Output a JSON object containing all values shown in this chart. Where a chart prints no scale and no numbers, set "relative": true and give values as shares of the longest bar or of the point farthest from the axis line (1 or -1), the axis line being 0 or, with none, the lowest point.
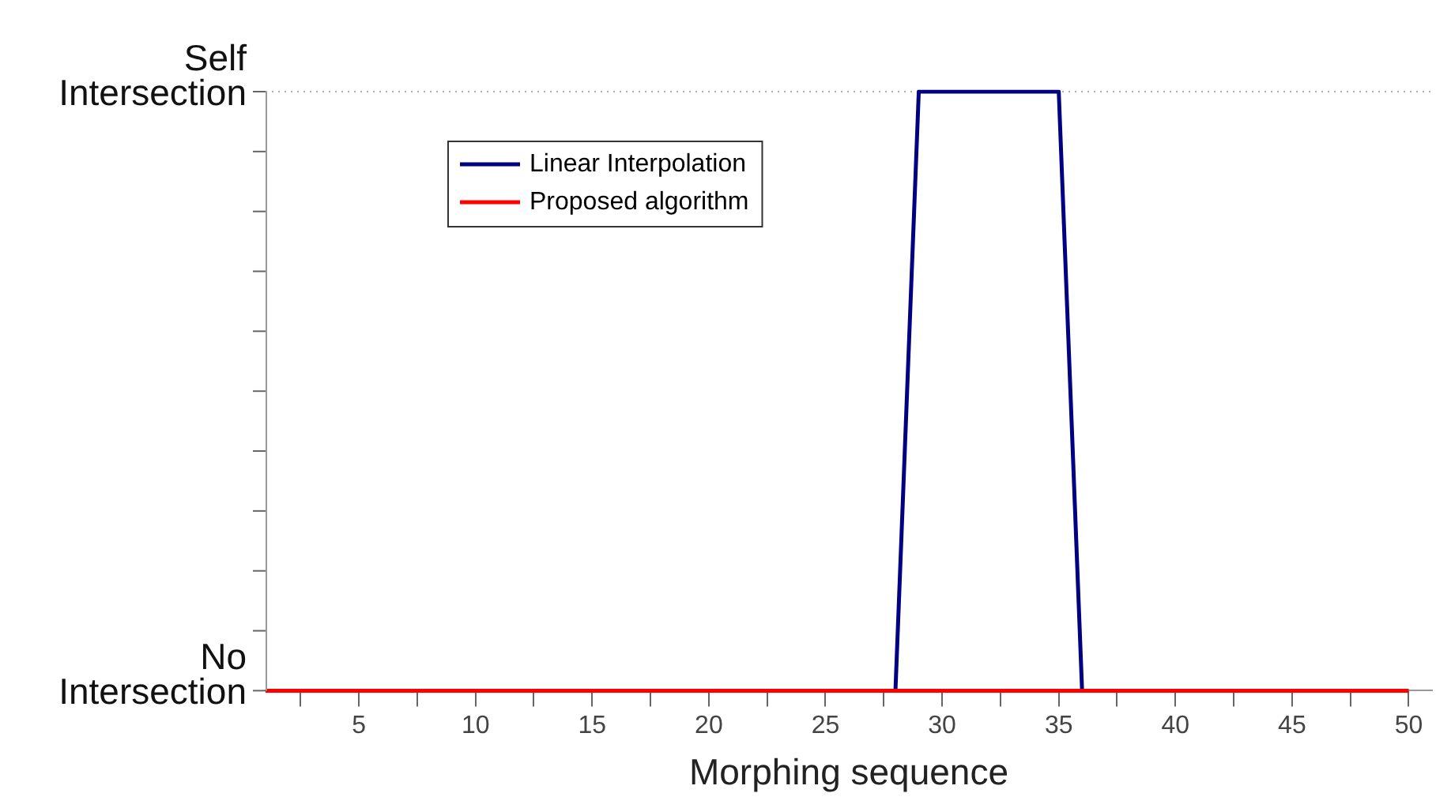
{
  "chart_data": {
    "type": "line",
    "xlabel": "Morphing sequence",
    "x": [
      1,
      2,
      3,
      4,
      5,
      6,
      7,
      8,
      9,
      10,
      11,
      12,
      13,
      14,
      15,
      16,
      17,
      18,
      19,
      20,
      21,
      22,
      23,
      24,
      25,
      26,
      27,
      28,
      29,
      30,
      31,
      32,
      33,
      34,
      35,
      36,
      37,
      38,
      39,
      40,
      41,
      42,
      43,
      44,
      45,
      46,
      47,
      48,
      49,
      50
    ],
    "series": [
      {
        "name": "Linear Interpolation",
        "color": "#000080",
        "values": [
          null,
          null,
          null,
          null,
          null,
          null,
          null,
          null,
          null,
          null,
          null,
          null,
          null,
          null,
          null,
          null,
          null,
          null,
          null,
          null,
          null,
          null,
          null,
          null,
          null,
          null,
          null,
          0,
          1,
          1,
          1,
          1,
          1,
          1,
          1,
          0,
          null,
          null,
          null,
          null,
          null,
          null,
          null,
          null,
          null,
          null,
          null,
          null,
          null,
          null
        ]
      },
      {
        "name": "Proposed algorithm",
        "color": "#ff0000",
        "values": [
          0,
          0,
          0,
          0,
          0,
          0,
          0,
          0,
          0,
          0,
          0,
          0,
          0,
          0,
          0,
          0,
          0,
          0,
          0,
          0,
          0,
          0,
          0,
          0,
          0,
          0,
          0,
          0,
          0,
          0,
          0,
          0,
          0,
          0,
          0,
          0,
          0,
          0,
          0,
          0,
          0,
          0,
          0,
          0,
          0,
          0,
          0,
          0,
          0,
          0
        ]
      }
    ],
    "xlim": [
      1,
      51
    ],
    "xticks": [
      {
        "value": 2.5,
        "label": null
      },
      5,
      {
        "value": 7.5,
        "label": null
      },
      10,
      {
        "value": 12.5,
        "label": null
      },
      15,
      {
        "value": 17.5,
        "label": null
      },
      20,
      {
        "value": 22.5,
        "label": null
      },
      25,
      {
        "value": 27.5,
        "label": null
      },
      30,
      {
        "value": 32.5,
        "label": null
      },
      35,
      {
        "value": 37.5,
        "label": null
      },
      40,
      {
        "value": 42.5,
        "label": null
      },
      45,
      {
        "value": 47.5,
        "label": null
      },
      50
    ],
    "relative": true,
    "annotations": [
      "Self Intersection",
      "No Intersection"
    ],
    "ref_lines": [
      {
        "axis": "y",
        "value": 1,
        "color": "#b0b0b0",
        "line_style": "dotted"
      }
    ],
    "legend": "top left",
    "grid": false,
    "marker": "none",
    "line_style": "solid"
  }
}
